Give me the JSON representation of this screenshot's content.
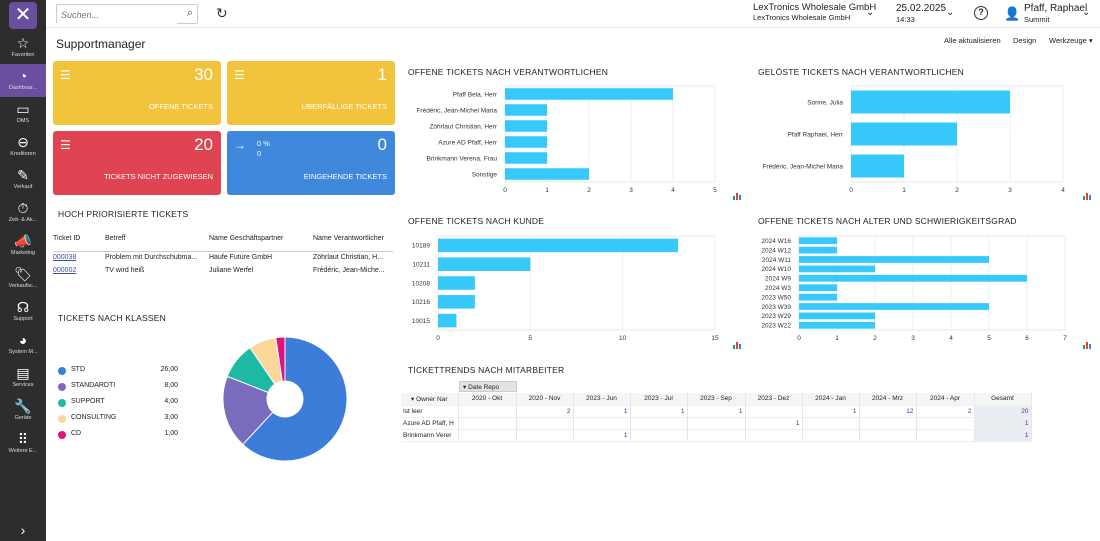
{
  "nav": {
    "items": [
      {
        "label": "Favoriten",
        "icon": "star-icon",
        "glyph": "☆"
      },
      {
        "label": "Dashboar...",
        "icon": "dashboard-icon",
        "glyph": "◔"
      },
      {
        "label": "DMS",
        "icon": "folder-icon",
        "glyph": "▭"
      },
      {
        "label": "Kreditoren",
        "icon": "minus-circle-icon",
        "glyph": "⊖"
      },
      {
        "label": "Verkauf",
        "icon": "edit-icon",
        "glyph": "✎"
      },
      {
        "label": "Zeit- & Ak...",
        "icon": "stopwatch-icon",
        "glyph": "⏱"
      },
      {
        "label": "Marketing",
        "icon": "megaphone-icon",
        "glyph": "📣"
      },
      {
        "label": "Verkaufsc...",
        "icon": "tag-icon",
        "glyph": "🏷"
      },
      {
        "label": "Support",
        "icon": "headset-icon",
        "glyph": "☊"
      },
      {
        "label": "System M...",
        "icon": "pie-icon",
        "glyph": "◕"
      },
      {
        "label": "Services",
        "icon": "briefcase-icon",
        "glyph": "▤"
      },
      {
        "label": "Geräte",
        "icon": "wrench-icon",
        "glyph": "🔧"
      },
      {
        "label": "Weitere E...",
        "icon": "grid-icon",
        "glyph": "⠿"
      }
    ],
    "expand_glyph": "›"
  },
  "topbar": {
    "search_placeholder": "Suchen...",
    "company_name": "LexTronics Wholesale GmbH",
    "company_sub": "LexTronics Wholesale GmbH",
    "date": "25.02.2025",
    "time": "14:33",
    "user_name": "Pfaff, Raphael",
    "user_sub": "Summit"
  },
  "header": {
    "title": "Supportmanager",
    "refresh": "Alle aktualisieren",
    "design": "Design",
    "tools": "Werkzeuge"
  },
  "tiles": [
    {
      "value": "30",
      "label": "OFFENE TICKETS",
      "color": "#f2c43c"
    },
    {
      "value": "1",
      "label": "ÜBERFÄLLIGE TICKETS",
      "color": "#f2c43c"
    },
    {
      "value": "20",
      "label": "TICKETS NICHT ZUGEWIESEN",
      "color": "#e04452"
    },
    {
      "value": "0",
      "label": "EINGEHENDE TICKETS",
      "color": "#3f88dc",
      "pct1": "0 %",
      "pct2": "0"
    }
  ],
  "priority": {
    "title": "HOCH PRIORISIERTE TICKETS",
    "columns": [
      "Ticket ID",
      "Betreff",
      "Name Geschäftspartner",
      "Name Verantwortlicher"
    ],
    "rows": [
      [
        "000038",
        "Problem mit Durchschubma...",
        "Haufe Future GmbH",
        "Zöhrlaut Christian, H..."
      ],
      [
        "000002",
        "TV wird heiß",
        "Juliane Werfel",
        "Frédéric, Jean-Miche..."
      ]
    ]
  },
  "classes": {
    "title": "TICKETS NACH KLASSEN",
    "items": [
      {
        "name": "STD",
        "value": "26,00",
        "color": "#3b7dd8",
        "num": 26
      },
      {
        "name": "STANDARDTI",
        "value": "8,00",
        "color": "#7b6bbd",
        "num": 8
      },
      {
        "name": "SUPPORT",
        "value": "4,00",
        "color": "#1db9a3",
        "num": 4
      },
      {
        "name": "CONSULTING",
        "value": "3,00",
        "color": "#fdd79a",
        "num": 3
      },
      {
        "name": "CD",
        "value": "1,00",
        "color": "#e0127f",
        "num": 1
      }
    ]
  },
  "chart_data": [
    {
      "type": "bar",
      "title": "OFFENE TICKETS NACH VERANTWORTLICHEN",
      "categories": [
        "Pfaff Bela, Herr",
        "Frédéric, Jean-Michel Maria",
        "Zöhrlaut Christian, Herr",
        "Azure AD Pfaff, Herr",
        "Brinkmann Verena, Frau",
        "Sonstige"
      ],
      "values": [
        4,
        1,
        1,
        1,
        1,
        2
      ],
      "xticks": [
        "0",
        "1",
        "2",
        "3",
        "4",
        "5"
      ],
      "xlim": [
        0,
        5
      ]
    },
    {
      "type": "bar",
      "title": "GELÖSTE TICKETS NACH VERANTWORTLICHEN",
      "categories": [
        "Sonne, Julia",
        "Pfaff Raphael, Herr",
        "Frédéric, Jean-Michel Maria"
      ],
      "values": [
        3,
        2,
        1
      ],
      "xticks": [
        "0",
        "1",
        "2",
        "3",
        "4"
      ],
      "xlim": [
        0,
        4
      ]
    },
    {
      "type": "bar",
      "title": "OFFENE TICKETS NACH KUNDE",
      "categories": [
        "10189",
        "10211",
        "10208",
        "10216",
        "10015"
      ],
      "values": [
        13,
        5,
        2,
        2,
        1
      ],
      "xticks": [
        "0",
        "5",
        "10",
        "15"
      ],
      "xlim": [
        0,
        15
      ]
    },
    {
      "type": "bar",
      "title": "OFFENE TICKETS NACH ALTER UND SCHWIERIGKEITSGRAD",
      "categories": [
        "2024 W16",
        "2024 W12",
        "2024 W11",
        "2024 W10",
        "2024 W9",
        "2024 W3",
        "2023 W50",
        "2023 W39",
        "2023 W29",
        "2023 W22"
      ],
      "values": [
        1,
        1,
        5,
        2,
        6,
        1,
        1,
        5,
        2,
        2
      ],
      "xticks": [
        "0",
        "1",
        "2",
        "3",
        "4",
        "5",
        "6",
        "7"
      ],
      "xlim": [
        0,
        7
      ]
    }
  ],
  "pivot": {
    "title": "TICKETTRENDS NACH MITARBEITER",
    "row_field": "Owner Nar",
    "col_field": "Date Repo",
    "columns": [
      "2020 - Okt",
      "2020 - Nov",
      "2023 - Jun",
      "2023 - Jul",
      "2023 - Sep",
      "2023 - Dez",
      "2024 - Jan",
      "2024 - Mrz",
      "2024 - Apr",
      "Gesamt"
    ],
    "rows": [
      {
        "name": "Ist leer",
        "cells": [
          "",
          "2",
          "1",
          "1",
          "1",
          "",
          "1",
          "12",
          "2",
          "20"
        ]
      },
      {
        "name": "Azure AD Pfaff, H",
        "cells": [
          "",
          "",
          "",
          "",
          "",
          "1",
          "",
          "",
          "",
          "1"
        ]
      },
      {
        "name": "Brinkmann Verer",
        "cells": [
          "",
          "",
          "1",
          "",
          "",
          "",
          "",
          "",
          "",
          "1"
        ]
      }
    ]
  },
  "colors": {
    "bar": "#38c9fb",
    "nav_active": "#6a4fa0"
  }
}
